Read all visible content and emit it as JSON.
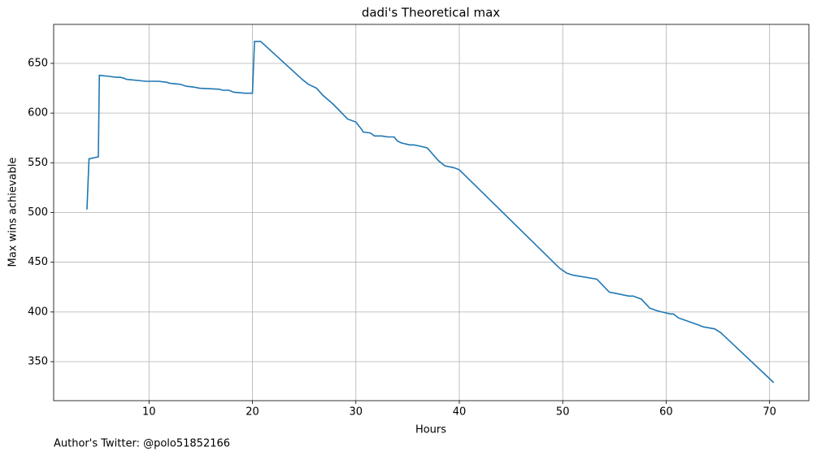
{
  "chart_data": {
    "type": "line",
    "title": "dadi's Theoretical max",
    "xlabel": "Hours",
    "ylabel": "Max wins achievable",
    "annotation": "Author's Twitter: @polo51852166",
    "color": "#1f77b4",
    "grid": true,
    "xlim": [
      0.78,
      73.8
    ],
    "ylim": [
      310.8,
      689.2
    ],
    "xticks": [
      10,
      20,
      30,
      40,
      50,
      60,
      70
    ],
    "yticks": [
      350,
      400,
      450,
      500,
      550,
      600,
      650
    ],
    "x": [
      4.0,
      4.2,
      5.1,
      5.2,
      6.1,
      6.8,
      7.2,
      7.6,
      7.8,
      9.7,
      10.6,
      10.9,
      11.7,
      12.0,
      13.0,
      13.6,
      14.4,
      14.9,
      16.8,
      17.1,
      17.7,
      18.2,
      19.3,
      19.6,
      20.0,
      20.2,
      20.8,
      24.8,
      25.4,
      26.2,
      26.8,
      27.8,
      29.2,
      30.0,
      30.6,
      30.7,
      31.4,
      31.8,
      32.5,
      33.1,
      33.7,
      34.0,
      34.4,
      35.2,
      35.6,
      36.1,
      36.9,
      38.0,
      38.6,
      39.5,
      40.0,
      49.7,
      50.4,
      51.0,
      53.3,
      54.5,
      56.4,
      56.8,
      57.6,
      58.4,
      58.9,
      59.2,
      60.4,
      60.7,
      61.2,
      62.3,
      63.1,
      63.6,
      64.7,
      65.3,
      70.4
    ],
    "values": [
      503,
      554,
      556,
      638,
      637,
      636,
      636,
      635,
      634,
      632,
      632,
      632,
      631,
      630,
      629,
      627,
      626,
      625,
      624,
      623,
      623,
      621,
      620,
      620,
      620,
      672,
      672,
      634,
      629,
      625,
      618,
      609,
      594,
      591,
      583,
      581,
      580,
      577,
      577,
      576,
      576,
      572,
      570,
      568,
      568,
      567,
      565,
      552,
      547,
      545,
      543,
      444,
      439,
      437,
      433,
      420,
      416,
      416,
      413,
      404,
      402,
      401,
      398,
      398,
      394,
      390,
      387,
      385,
      383,
      379,
      329
    ]
  }
}
